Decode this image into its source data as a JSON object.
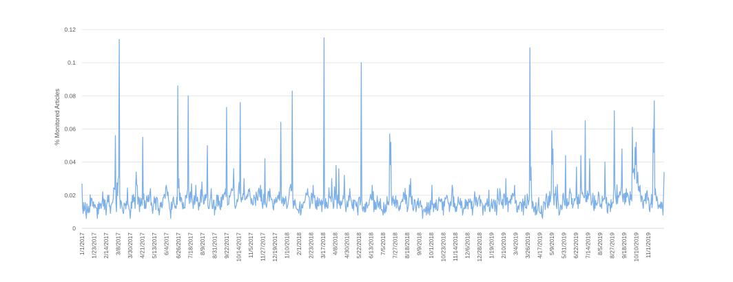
{
  "chart_data": {
    "type": "line",
    "title": "",
    "xlabel": "",
    "ylabel": "% Monitored Articles",
    "ylim": [
      0,
      0.12
    ],
    "yticks": [
      "0",
      "0.02",
      "0.04",
      "0.06",
      "0.08",
      "0.1",
      "0.12"
    ],
    "grid": "horizontal",
    "legend": "none",
    "line_color": "#7eb0e8",
    "x_start": "1/1/2017",
    "x_end": "11/30/2019",
    "x_tick_labels": [
      "1/1/2017",
      "1/23/2017",
      "2/14/2017",
      "3/8/2017",
      "3/30/2017",
      "4/21/2017",
      "5/13/2017",
      "6/4/2017",
      "6/26/2017",
      "7/18/2017",
      "8/9/2017",
      "8/31/2017",
      "9/22/2017",
      "10/14/2017",
      "11/5/2017",
      "11/27/2017",
      "12/19/2017",
      "1/10/2018",
      "2/1/2018",
      "2/23/2018",
      "3/17/2018",
      "4/8/2018",
      "4/30/2018",
      "5/22/2018",
      "6/13/2018",
      "7/5/2018",
      "7/27/2018",
      "8/18/2018",
      "9/9/2018",
      "10/1/2018",
      "10/23/2018",
      "11/14/2018",
      "12/6/2018",
      "12/28/2018",
      "1/19/2019",
      "2/10/2019",
      "3/4/2019",
      "3/26/2019",
      "4/17/2019",
      "5/9/2019",
      "5/31/2019",
      "6/22/2019",
      "7/14/2019",
      "8/5/2019",
      "8/27/2019",
      "9/18/2019",
      "10/10/2019",
      "11/1/2019"
    ],
    "series_points": [
      [
        "1/1/2017",
        0.027
      ],
      [
        "1/3/2017",
        0.009
      ],
      [
        "1/6/2017",
        0.012
      ],
      [
        "1/9/2017",
        0.006
      ],
      [
        "1/15/2017",
        0.01
      ],
      [
        "1/22/2017",
        0.016
      ],
      [
        "1/29/2017",
        0.006
      ],
      [
        "2/5/2017",
        0.012
      ],
      [
        "2/8/2017",
        0.022
      ],
      [
        "2/14/2017",
        0.008
      ],
      [
        "2/17/2017",
        0.02
      ],
      [
        "2/22/2017",
        0.009
      ],
      [
        "2/27/2017",
        0.018
      ],
      [
        "3/3/2017",
        0.056
      ],
      [
        "3/5/2017",
        0.01
      ],
      [
        "3/8/2017",
        0.03
      ],
      [
        "3/10/2017",
        0.114
      ],
      [
        "3/12/2017",
        0.012
      ],
      [
        "3/18/2017",
        0.009
      ],
      [
        "3/24/2017",
        0.014
      ],
      [
        "3/30/2017",
        0.006
      ],
      [
        "4/3/2017",
        0.02
      ],
      [
        "4/8/2017",
        0.012
      ],
      [
        "4/10/2017",
        0.034
      ],
      [
        "4/12/2017",
        0.026
      ],
      [
        "4/16/2017",
        0.01
      ],
      [
        "4/22/2017",
        0.055
      ],
      [
        "4/25/2017",
        0.012
      ],
      [
        "5/1/2017",
        0.016
      ],
      [
        "5/6/2017",
        0.024
      ],
      [
        "5/10/2017",
        0.009
      ],
      [
        "5/15/2017",
        0.018
      ],
      [
        "5/22/2017",
        0.008
      ],
      [
        "5/28/2017",
        0.014
      ],
      [
        "6/4/2017",
        0.026
      ],
      [
        "6/7/2017",
        0.022
      ],
      [
        "6/12/2017",
        0.006
      ],
      [
        "6/17/2017",
        0.019
      ],
      [
        "6/22/2017",
        0.012
      ],
      [
        "6/25/2017",
        0.086
      ],
      [
        "6/27/2017",
        0.03
      ],
      [
        "6/30/2017",
        0.016
      ],
      [
        "7/6/2017",
        0.012
      ],
      [
        "7/10/2017",
        0.02
      ],
      [
        "7/14/2017",
        0.08
      ],
      [
        "7/16/2017",
        0.015
      ],
      [
        "7/20/2017",
        0.027
      ],
      [
        "7/23/2017",
        0.012
      ],
      [
        "7/28/2017",
        0.026
      ],
      [
        "8/2/2017",
        0.011
      ],
      [
        "8/8/2017",
        0.028
      ],
      [
        "8/12/2017",
        0.015
      ],
      [
        "8/18/2017",
        0.05
      ],
      [
        "8/20/2017",
        0.012
      ],
      [
        "8/25/2017",
        0.024
      ],
      [
        "8/31/2017",
        0.008
      ],
      [
        "9/4/2017",
        0.02
      ],
      [
        "9/10/2017",
        0.012
      ],
      [
        "9/17/2017",
        0.02
      ],
      [
        "9/22/2017",
        0.073
      ],
      [
        "9/24/2017",
        0.014
      ],
      [
        "10/1/2017",
        0.024
      ],
      [
        "10/5/2017",
        0.036
      ],
      [
        "10/8/2017",
        0.012
      ],
      [
        "10/14/2017",
        0.024
      ],
      [
        "10/17/2017",
        0.076
      ],
      [
        "10/19/2017",
        0.016
      ],
      [
        "10/24/2017",
        0.03
      ],
      [
        "10/29/2017",
        0.018
      ],
      [
        "11/3/2017",
        0.024
      ],
      [
        "11/9/2017",
        0.014
      ],
      [
        "11/16/2017",
        0.02
      ],
      [
        "11/23/2017",
        0.026
      ],
      [
        "11/27/2017",
        0.012
      ],
      [
        "12/1/2017",
        0.042
      ],
      [
        "12/3/2017",
        0.014
      ],
      [
        "12/10/2017",
        0.024
      ],
      [
        "12/16/2017",
        0.012
      ],
      [
        "12/23/2017",
        0.016
      ],
      [
        "12/30/2017",
        0.064
      ],
      [
        "1/1/2018",
        0.015
      ],
      [
        "1/5/2018",
        0.018
      ],
      [
        "1/10/2018",
        0.012
      ],
      [
        "1/15/2018",
        0.024
      ],
      [
        "1/20/2018",
        0.083
      ],
      [
        "1/22/2018",
        0.012
      ],
      [
        "1/28/2018",
        0.012
      ],
      [
        "2/4/2018",
        0.008
      ],
      [
        "2/10/2018",
        0.016
      ],
      [
        "2/17/2018",
        0.024
      ],
      [
        "2/21/2018",
        0.012
      ],
      [
        "2/27/2018",
        0.026
      ],
      [
        "3/4/2018",
        0.012
      ],
      [
        "3/10/2018",
        0.018
      ],
      [
        "3/15/2018",
        0.01
      ],
      [
        "3/19/2018",
        0.115
      ],
      [
        "3/21/2018",
        0.012
      ],
      [
        "3/27/2018",
        0.016
      ],
      [
        "4/2/2018",
        0.03
      ],
      [
        "4/5/2018",
        0.012
      ],
      [
        "4/10/2018",
        0.038
      ],
      [
        "4/12/2018",
        0.012
      ],
      [
        "4/15/2018",
        0.036
      ],
      [
        "4/18/2018",
        0.012
      ],
      [
        "4/25/2018",
        0.032
      ],
      [
        "4/28/2018",
        0.01
      ],
      [
        "5/5/2018",
        0.024
      ],
      [
        "5/10/2018",
        0.012
      ],
      [
        "5/16/2018",
        0.014
      ],
      [
        "5/20/2018",
        0.008
      ],
      [
        "5/26/2018",
        0.1
      ],
      [
        "5/28/2018",
        0.012
      ],
      [
        "6/3/2018",
        0.01
      ],
      [
        "6/9/2018",
        0.014
      ],
      [
        "6/15/2018",
        0.026
      ],
      [
        "6/18/2018",
        0.01
      ],
      [
        "6/25/2018",
        0.016
      ],
      [
        "7/1/2018",
        0.012
      ],
      [
        "7/5/2018",
        0.008
      ],
      [
        "7/11/2018",
        0.012
      ],
      [
        "7/17/2018",
        0.057
      ],
      [
        "7/19/2018",
        0.052
      ],
      [
        "7/21/2018",
        0.014
      ],
      [
        "7/27/2018",
        0.016
      ],
      [
        "8/2/2018",
        0.012
      ],
      [
        "8/8/2018",
        0.016
      ],
      [
        "8/14/2018",
        0.024
      ],
      [
        "8/18/2018",
        0.01
      ],
      [
        "8/24/2018",
        0.03
      ],
      [
        "8/28/2018",
        0.012
      ],
      [
        "9/3/2018",
        0.01
      ],
      [
        "9/9/2018",
        0.014
      ],
      [
        "9/15/2018",
        0.006
      ],
      [
        "9/22/2018",
        0.008
      ],
      [
        "9/28/2018",
        0.008
      ],
      [
        "10/2/2018",
        0.026
      ],
      [
        "10/5/2018",
        0.01
      ],
      [
        "10/11/2018",
        0.012
      ],
      [
        "10/18/2018",
        0.016
      ],
      [
        "10/23/2018",
        0.008
      ],
      [
        "10/29/2018",
        0.02
      ],
      [
        "11/3/2018",
        0.01
      ],
      [
        "11/8/2018",
        0.026
      ],
      [
        "11/14/2018",
        0.01
      ],
      [
        "11/20/2018",
        0.016
      ],
      [
        "11/27/2018",
        0.008
      ],
      [
        "12/3/2018",
        0.012
      ],
      [
        "12/9/2018",
        0.016
      ],
      [
        "12/15/2018",
        0.008
      ],
      [
        "12/21/2018",
        0.014
      ],
      [
        "12/28/2018",
        0.02
      ],
      [
        "1/3/2019",
        0.008
      ],
      [
        "1/9/2019",
        0.014
      ],
      [
        "1/16/2019",
        0.01
      ],
      [
        "1/22/2019",
        0.016
      ],
      [
        "1/28/2019",
        0.008
      ],
      [
        "2/3/2019",
        0.024
      ],
      [
        "2/9/2019",
        0.012
      ],
      [
        "2/14/2019",
        0.03
      ],
      [
        "2/18/2019",
        0.01
      ],
      [
        "2/24/2019",
        0.02
      ],
      [
        "3/2/2019",
        0.026
      ],
      [
        "3/6/2019",
        0.01
      ],
      [
        "3/12/2019",
        0.016
      ],
      [
        "3/18/2019",
        0.008
      ],
      [
        "3/24/2019",
        0.012
      ],
      [
        "3/30/2019",
        0.109
      ],
      [
        "4/1/2019",
        0.037
      ],
      [
        "4/3/2019",
        0.012
      ],
      [
        "4/9/2019",
        0.008
      ],
      [
        "4/16/2019",
        0.01
      ],
      [
        "4/22/2019",
        0.006
      ],
      [
        "4/28/2019",
        0.018
      ],
      [
        "5/4/2019",
        0.014
      ],
      [
        "5/9/2019",
        0.059
      ],
      [
        "5/11/2019",
        0.048
      ],
      [
        "5/13/2019",
        0.014
      ],
      [
        "5/16/2019",
        0.025
      ],
      [
        "5/22/2019",
        0.008
      ],
      [
        "5/28/2019",
        0.012
      ],
      [
        "6/3/2019",
        0.044
      ],
      [
        "6/5/2019",
        0.012
      ],
      [
        "6/11/2019",
        0.024
      ],
      [
        "6/17/2019",
        0.014
      ],
      [
        "6/23/2019",
        0.037
      ],
      [
        "6/26/2019",
        0.012
      ],
      [
        "7/1/2019",
        0.044
      ],
      [
        "7/5/2019",
        0.02
      ],
      [
        "7/9/2019",
        0.065
      ],
      [
        "7/12/2019",
        0.016
      ],
      [
        "7/17/2019",
        0.042
      ],
      [
        "7/20/2019",
        0.014
      ],
      [
        "7/27/2019",
        0.012
      ],
      [
        "8/2/2019",
        0.022
      ],
      [
        "8/8/2019",
        0.012
      ],
      [
        "8/14/2019",
        0.04
      ],
      [
        "8/18/2019",
        0.01
      ],
      [
        "8/24/2019",
        0.01
      ],
      [
        "8/31/2019",
        0.071
      ],
      [
        "9/3/2019",
        0.018
      ],
      [
        "9/9/2019",
        0.02
      ],
      [
        "9/14/2019",
        0.048
      ],
      [
        "9/16/2019",
        0.016
      ],
      [
        "9/22/2019",
        0.024
      ],
      [
        "9/28/2019",
        0.014
      ],
      [
        "10/3/2019",
        0.061
      ],
      [
        "10/6/2019",
        0.036
      ],
      [
        "10/8/2019",
        0.049
      ],
      [
        "10/10/2019",
        0.052
      ],
      [
        "10/13/2019",
        0.034
      ],
      [
        "10/17/2019",
        0.026
      ],
      [
        "10/23/2019",
        0.012
      ],
      [
        "10/29/2019",
        0.022
      ],
      [
        "11/4/2019",
        0.01
      ],
      [
        "11/10/2019",
        0.06
      ],
      [
        "11/12/2019",
        0.077
      ],
      [
        "11/15/2019",
        0.02
      ],
      [
        "11/19/2019",
        0.012
      ],
      [
        "11/24/2019",
        0.016
      ],
      [
        "11/28/2019",
        0.008
      ],
      [
        "11/30/2019",
        0.034
      ]
    ],
    "series_seed": 20170101
  }
}
